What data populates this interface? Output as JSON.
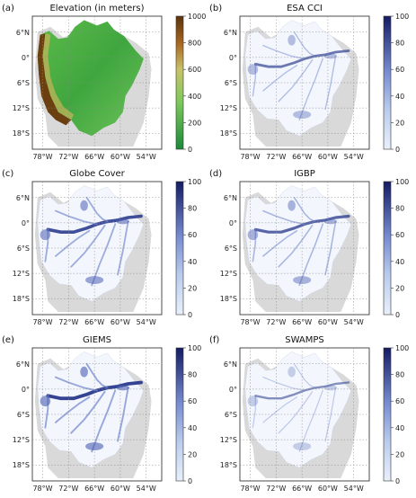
{
  "ticks": {
    "lat": [
      "6°N",
      "0°",
      "6°S",
      "12°S",
      "18°S"
    ],
    "lon": [
      "78°W",
      "72°W",
      "66°W",
      "60°W",
      "54°W"
    ]
  },
  "colors": {
    "land": "#d9d9d9",
    "basin_fill_wetland": "#f1f5fc",
    "water_dark": "#1d2d7a",
    "water_mid": "#5a6fc0",
    "water_light": "#b6c6ea",
    "elev_low": "#2f9a3a",
    "elev_mid": "#6fc45a",
    "elev_high": "#6b3f10"
  },
  "panels": [
    {
      "letter": "(a)",
      "title": "Elevation (in meters)",
      "type": "elevation",
      "colorbar": [
        "1000",
        "800",
        "600",
        "400",
        "200",
        "0"
      ]
    },
    {
      "letter": "(b)",
      "title": "ESA CCI",
      "type": "wetland",
      "intensity": 0.55,
      "colorbar": [
        "100",
        "80",
        "60",
        "40",
        "20",
        "0"
      ]
    },
    {
      "letter": "(c)",
      "title": "Globe Cover",
      "type": "wetland",
      "intensity": 0.9,
      "colorbar": [
        "100",
        "80",
        "60",
        "40",
        "20",
        "0"
      ]
    },
    {
      "letter": "(d)",
      "title": "IGBP",
      "type": "wetland",
      "intensity": 0.7,
      "colorbar": [
        "100",
        "80",
        "60",
        "40",
        "20",
        "0"
      ]
    },
    {
      "letter": "(e)",
      "title": "GIEMS",
      "type": "wetland",
      "intensity": 1.0,
      "colorbar": [
        "100",
        "80",
        "60",
        "40",
        "20",
        "0"
      ]
    },
    {
      "letter": "(f)",
      "title": "SWAMPS",
      "type": "wetland",
      "intensity": 0.35,
      "colorbar": [
        "100",
        "80",
        "60",
        "40",
        "20",
        "0"
      ]
    }
  ]
}
